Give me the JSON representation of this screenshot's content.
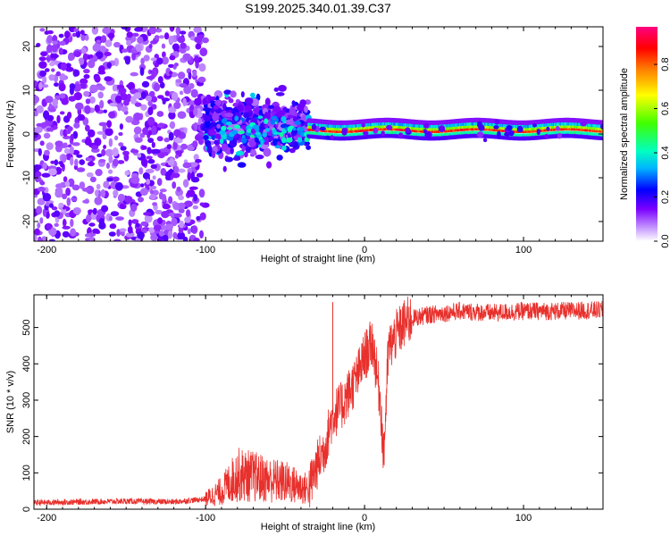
{
  "title": "S199.2025.340.01.39.C37",
  "colors": {
    "snr_line": "#e8302c",
    "axis": "#000000",
    "colormap": [
      "#ffffff",
      "#7a00ff",
      "#0000ff",
      "#00c8ff",
      "#00ff80",
      "#7fff00",
      "#ffff00",
      "#ff8000",
      "#ff0000",
      "#ff0090"
    ]
  },
  "chart_data": [
    {
      "type": "heatmap",
      "name": "spectrogram",
      "xlabel": "Height of straight line (km)",
      "ylabel": "Frequency (Hz)",
      "xlim": [
        -208,
        150
      ],
      "ylim": [
        -24.5,
        24.5
      ],
      "xticks": [
        -200,
        -100,
        0,
        100
      ],
      "yticks": [
        -20,
        -10,
        0,
        10,
        20
      ],
      "colorbar": {
        "label": "Normalized spectral amplitude",
        "range": [
          0,
          0.97
        ],
        "ticks": [
          0.0,
          0.2,
          0.4,
          0.6,
          0.8
        ]
      },
      "description_regions": [
        {
          "x_range": [
            -208,
            -100
          ],
          "freq_spread": 24,
          "amplitude": 0.12
        },
        {
          "x_range": [
            -100,
            -35
          ],
          "freq_spread": 12,
          "amplitude": 0.25
        },
        {
          "x_range": [
            -35,
            150
          ],
          "freq_center": 0.8,
          "freq_spread": 1.5,
          "amplitude": 0.9
        }
      ]
    },
    {
      "type": "line",
      "name": "snr",
      "xlabel": "Height of straight line (km)",
      "ylabel": "SNR (10 * v/v)",
      "xlim": [
        -208,
        150
      ],
      "ylim": [
        0,
        590
      ],
      "xticks": [
        -200,
        -100,
        0,
        100
      ],
      "yticks": [
        0,
        100,
        200,
        300,
        400,
        500
      ],
      "series": [
        {
          "name": "SNR",
          "x": [
            -208,
            -180,
            -150,
            -120,
            -100,
            -90,
            -80,
            -70,
            -60,
            -50,
            -40,
            -35,
            -30,
            -25,
            -20,
            -15,
            -10,
            -5,
            0,
            5,
            10,
            12,
            15,
            20,
            25,
            30,
            40,
            50,
            60,
            80,
            100,
            120,
            150
          ],
          "values": [
            18,
            20,
            22,
            20,
            28,
            50,
            95,
            90,
            80,
            75,
            60,
            55,
            120,
            170,
            260,
            280,
            320,
            360,
            420,
            460,
            300,
            140,
            440,
            480,
            510,
            525,
            535,
            540,
            545,
            540,
            545,
            545,
            548
          ],
          "spikes": [
            {
              "x": -20,
              "y": 570
            }
          ]
        }
      ]
    }
  ]
}
